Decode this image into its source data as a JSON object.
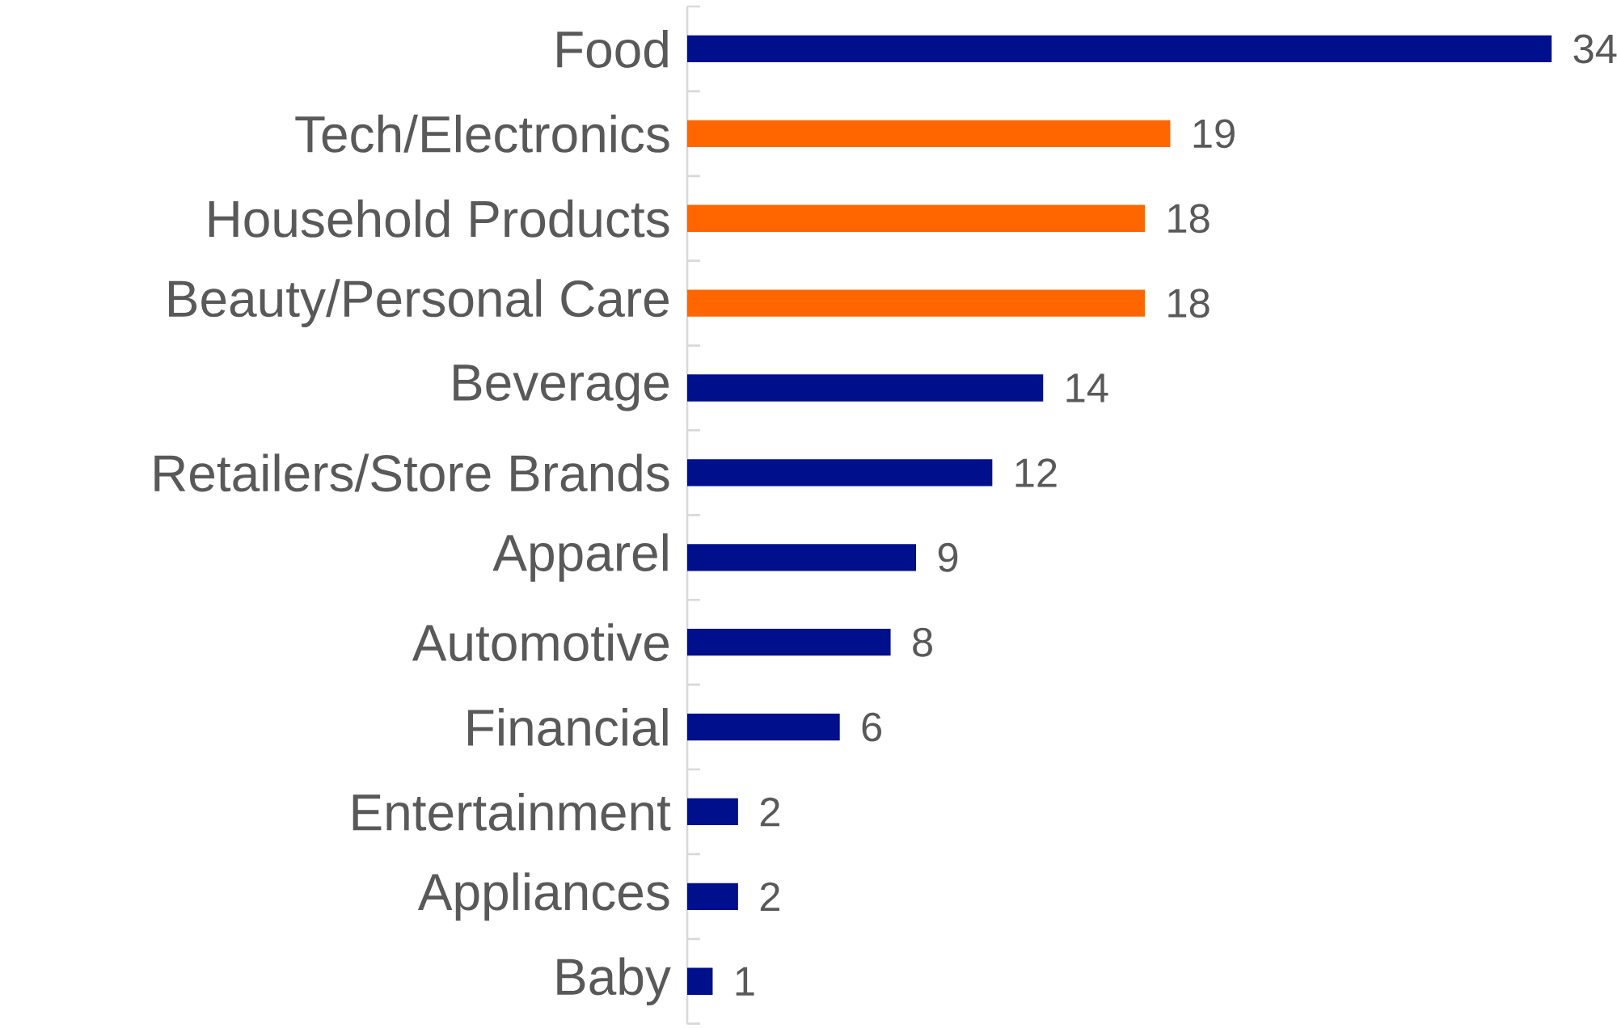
{
  "chart_data": {
    "type": "bar",
    "orientation": "horizontal",
    "data_labels": true,
    "categories": [
      "Food",
      "Tech/Electronics",
      "Household Products",
      "Beauty/Personal Care",
      "Beverage",
      "Retailers/Store Brands",
      "Apparel",
      "Automotive",
      "Financial",
      "Entertainment",
      "Appliances",
      "Baby"
    ],
    "values": [
      34,
      19,
      18,
      18,
      14,
      12,
      9,
      8,
      6,
      2,
      2,
      1
    ],
    "colors": [
      "#000f8c",
      "#ff6600",
      "#ff6600",
      "#ff6600",
      "#000f8c",
      "#000f8c",
      "#000f8c",
      "#000f8c",
      "#000f8c",
      "#000f8c",
      "#000f8c",
      "#000f8c"
    ]
  }
}
